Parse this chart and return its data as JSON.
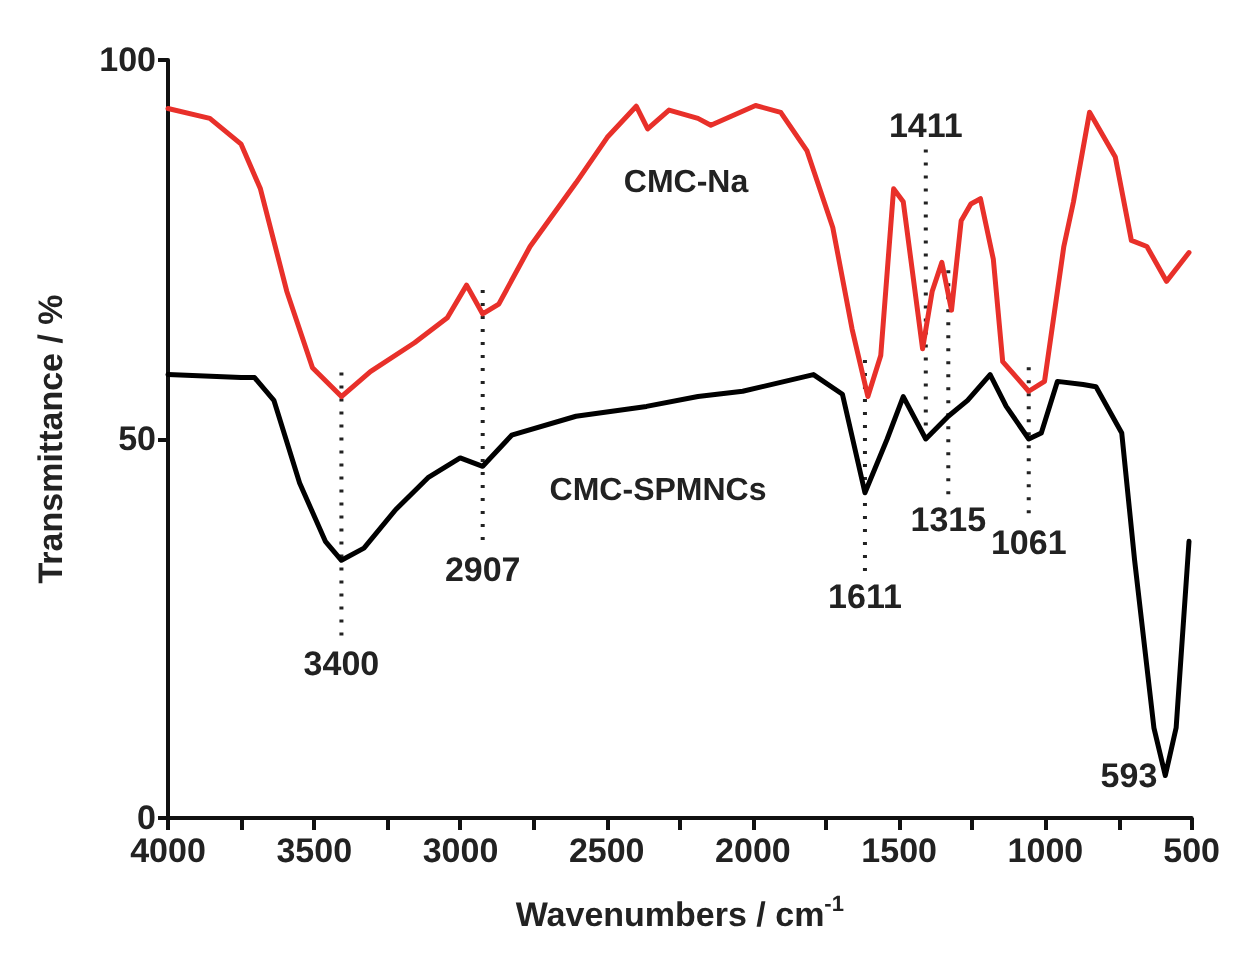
{
  "chart_data": {
    "type": "line",
    "xlabel": "Wavenumbers / cm$^{-1}$",
    "ylabel": "Transmittance / %",
    "xlim": [
      4000,
      500
    ],
    "ylim": [
      0,
      100
    ],
    "xticks": [
      4000,
      {
        "value": 3750,
        "label": null
      },
      3500,
      {
        "value": 3250,
        "label": null
      },
      3000,
      {
        "value": 2750,
        "label": null
      },
      2500,
      {
        "value": 2250,
        "label": null
      },
      2000,
      {
        "value": 1750,
        "label": null
      },
      1500,
      {
        "value": 1250,
        "label": null
      },
      1000,
      {
        "value": 750,
        "label": null
      },
      500
    ],
    "yticks": [
      0,
      50,
      100
    ],
    "grid": false,
    "legend": false,
    "marker": "none",
    "line_style": "solid",
    "series": [
      {
        "name": "CMC-Na",
        "color": "#e8302a",
        "x": [
          4000,
          3857,
          3750,
          3684,
          3594,
          3506,
          3407,
          3308,
          3157,
          3045,
          2979,
          2924,
          2869,
          2762,
          2605,
          2498,
          2399,
          2360,
          2287,
          2188,
          2144,
          1991,
          1905,
          1815,
          1727,
          1661,
          1607,
          1563,
          1519,
          1486,
          1420,
          1387,
          1354,
          1321,
          1288,
          1255,
          1222,
          1178,
          1146,
          1057,
          1003,
          937,
          904,
          849,
          761,
          706,
          653,
          586,
          509
        ],
        "values": [
          93.6,
          92.3,
          88.9,
          83,
          69.5,
          59.4,
          55.6,
          58.9,
          62.7,
          66,
          70.3,
          66.5,
          67.8,
          75.4,
          83.8,
          89.8,
          93.9,
          90.9,
          93.4,
          92.3,
          91.4,
          94,
          93.1,
          88,
          77.9,
          64.5,
          55.6,
          61,
          83,
          81.3,
          61.9,
          69.5,
          73.3,
          67,
          78.8,
          81,
          81.7,
          73.7,
          60.2,
          56.3,
          57.6,
          75.4,
          81.3,
          93.1,
          87.2,
          76.2,
          75.4,
          70.8,
          74.6
        ]
      },
      {
        "name": "CMC-SPMNCs",
        "color": "#000000",
        "x": [
          4000,
          3750,
          3704,
          3638,
          3550,
          3462,
          3407,
          3330,
          3221,
          3111,
          3001,
          2924,
          2825,
          2605,
          2364,
          2188,
          2035,
          1793,
          1694,
          1617,
          1541,
          1486,
          1409,
          1332,
          1266,
          1189,
          1134,
          1057,
          1014,
          959,
          871,
          827,
          739,
          695,
          629,
          590,
          553,
          509
        ],
        "values": [
          58.5,
          58.1,
          58.1,
          55.1,
          44.2,
          36.5,
          34,
          35.6,
          40.7,
          44.9,
          47.5,
          46.4,
          50.5,
          53,
          54.3,
          55.6,
          56.3,
          58.5,
          55.9,
          42.9,
          50,
          55.6,
          50,
          53,
          55.1,
          58.5,
          54.3,
          50,
          50.8,
          57.6,
          57.2,
          56.9,
          50.8,
          34,
          11.9,
          5.6,
          11.9,
          36.5
        ]
      }
    ],
    "annotations": [
      {
        "text": "3400",
        "x": 3407,
        "y": 34
      },
      {
        "text": "2907",
        "x": 2924,
        "y": 46.4
      },
      {
        "text": "1611",
        "x": 1617,
        "y": 42.9
      },
      {
        "text": "1411",
        "x": 1409,
        "y": 50
      },
      {
        "text": "1315",
        "x": 1332,
        "y": 53
      },
      {
        "text": "1061",
        "x": 1057,
        "y": 50
      },
      {
        "text": "593",
        "x": 590,
        "y": 5.6
      }
    ]
  }
}
